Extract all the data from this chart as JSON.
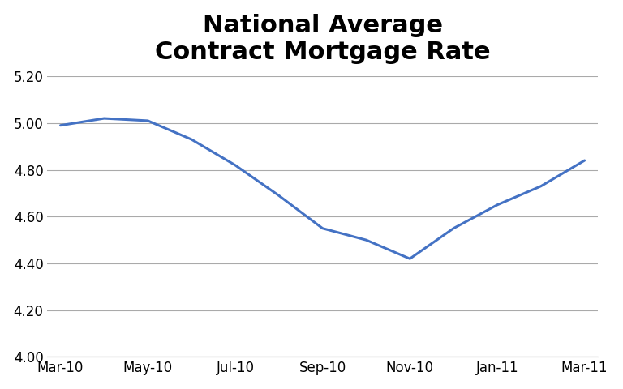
{
  "title": "National Average\nContract Mortgage Rate",
  "x_labels": [
    "Mar-10",
    "May-10",
    "Jul-10",
    "Sep-10",
    "Nov-10",
    "Jan-11",
    "Mar-11"
  ],
  "x_values": [
    0,
    2,
    4,
    6,
    8,
    10,
    12
  ],
  "y_data_x": [
    0,
    1,
    2,
    3,
    4,
    5,
    6,
    7,
    8,
    9,
    10,
    11,
    12
  ],
  "y_data_y": [
    4.99,
    5.02,
    5.01,
    4.93,
    4.82,
    4.69,
    4.55,
    4.5,
    4.42,
    4.55,
    4.65,
    4.73,
    4.84
  ],
  "ylim": [
    4.0,
    5.2
  ],
  "yticks": [
    4.0,
    4.2,
    4.4,
    4.6,
    4.8,
    5.0,
    5.2
  ],
  "line_color": "#4472C4",
  "line_width": 2.2,
  "background_color": "#ffffff",
  "title_fontsize": 22,
  "title_fontweight": "bold",
  "tick_fontsize": 12,
  "grid_color": "#AAAAAA",
  "grid_linewidth": 0.8
}
